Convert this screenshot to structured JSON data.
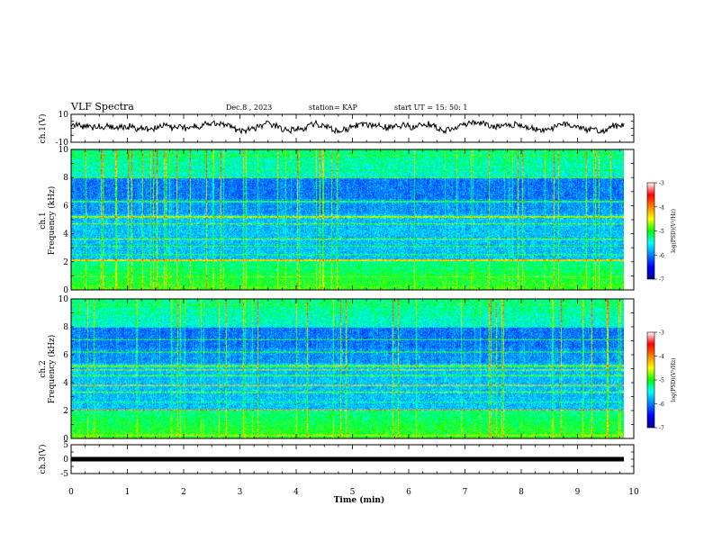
{
  "header": {
    "title": "VLF Spectra",
    "date": "Dec.8 , 2023",
    "station": "station= KAP",
    "start": "start  UT =   15: 50: 1"
  },
  "chart_data": [
    {
      "type": "line",
      "name": "ch1-waveform",
      "ylabel": "ch.1(V)",
      "ylim": [
        -10,
        10
      ],
      "yticks": [
        "10",
        "-10"
      ],
      "xlim": [
        0,
        10
      ],
      "note_y_pattern": "noisy waveform roughly between -3 and 5 V"
    },
    {
      "type": "heatmap",
      "name": "ch1-spectrogram",
      "ylabel": "ch.1\nFrequency (kHz)",
      "ylabel_lines": [
        "ch.1",
        "Frequency (kHz)"
      ],
      "ylim": [
        0,
        10
      ],
      "yticks": [
        "0",
        "2",
        "4",
        "6",
        "8",
        "10"
      ],
      "xlim": [
        0,
        9.85
      ],
      "colorbar": {
        "label": "log(PSD)(V²/Hz)",
        "range": [
          -7,
          -3
        ],
        "ticks": [
          "-3",
          "-4",
          "-5",
          "-6",
          "-7"
        ]
      },
      "bands": [
        {
          "f": 0.15,
          "level": 0.62
        },
        {
          "f": 0.5,
          "level": 0.55
        },
        {
          "f": 0.9,
          "level": 0.55
        },
        {
          "f": 1.4,
          "level": 0.5
        },
        {
          "f": 2.1,
          "level": 0.9
        },
        {
          "f": 2.5,
          "level": 0.55
        },
        {
          "f": 3.1,
          "level": 0.5
        },
        {
          "f": 3.6,
          "level": 0.62
        },
        {
          "f": 4.7,
          "level": 0.58
        },
        {
          "f": 5.2,
          "level": 0.78
        },
        {
          "f": 6.3,
          "level": 0.58
        },
        {
          "f": 8.0,
          "level": 0.5
        },
        {
          "f": 8.5,
          "level": 0.52
        },
        {
          "f": 9.0,
          "level": 0.52
        },
        {
          "f": 9.6,
          "level": 0.55
        }
      ]
    },
    {
      "type": "heatmap",
      "name": "ch2-spectrogram",
      "ylabel": "ch.2\nFrequency (kHz)",
      "ylabel_lines": [
        "ch.2",
        "Frequency (kHz)"
      ],
      "ylim": [
        0,
        10
      ],
      "yticks": [
        "0",
        "2",
        "4",
        "6",
        "8",
        "10"
      ],
      "xlim": [
        0,
        9.85
      ],
      "colorbar": {
        "label": "log(PSD)(V²/Hz)",
        "range": [
          -7,
          -3
        ],
        "ticks": [
          "-3",
          "-4",
          "-5",
          "-6",
          "-7"
        ]
      },
      "bands": [
        {
          "f": 0.2,
          "level": 0.62
        },
        {
          "f": 1.0,
          "level": 0.5
        },
        {
          "f": 2.0,
          "level": 0.72
        },
        {
          "f": 2.6,
          "level": 0.5
        },
        {
          "f": 3.3,
          "level": 0.6
        },
        {
          "f": 3.8,
          "level": 0.7
        },
        {
          "f": 4.5,
          "level": 0.6
        },
        {
          "f": 4.9,
          "level": 0.6
        },
        {
          "f": 5.2,
          "level": 0.72
        },
        {
          "f": 6.2,
          "level": 0.5
        },
        {
          "f": 7.1,
          "level": 0.45
        },
        {
          "f": 9.0,
          "level": 0.55
        },
        {
          "f": 9.6,
          "level": 0.55
        }
      ]
    },
    {
      "type": "line",
      "name": "ch3-signal",
      "ylabel": "ch.3(V)",
      "ylim": [
        -5,
        5
      ],
      "yticks": [
        "5",
        "0",
        "-5"
      ],
      "xlim": [
        0,
        10
      ],
      "series": [
        {
          "y": 0
        }
      ]
    }
  ],
  "xaxis": {
    "label": "Time  (min)",
    "ticks": [
      "0",
      "1",
      "2",
      "3",
      "4",
      "5",
      "6",
      "7",
      "8",
      "9",
      "10"
    ]
  },
  "colors": {
    "colormap": [
      "#00008c",
      "#0000ff",
      "#0080ff",
      "#00ffff",
      "#00ff00",
      "#ffff00",
      "#ff8000",
      "#ff0000",
      "#ffffff"
    ]
  }
}
